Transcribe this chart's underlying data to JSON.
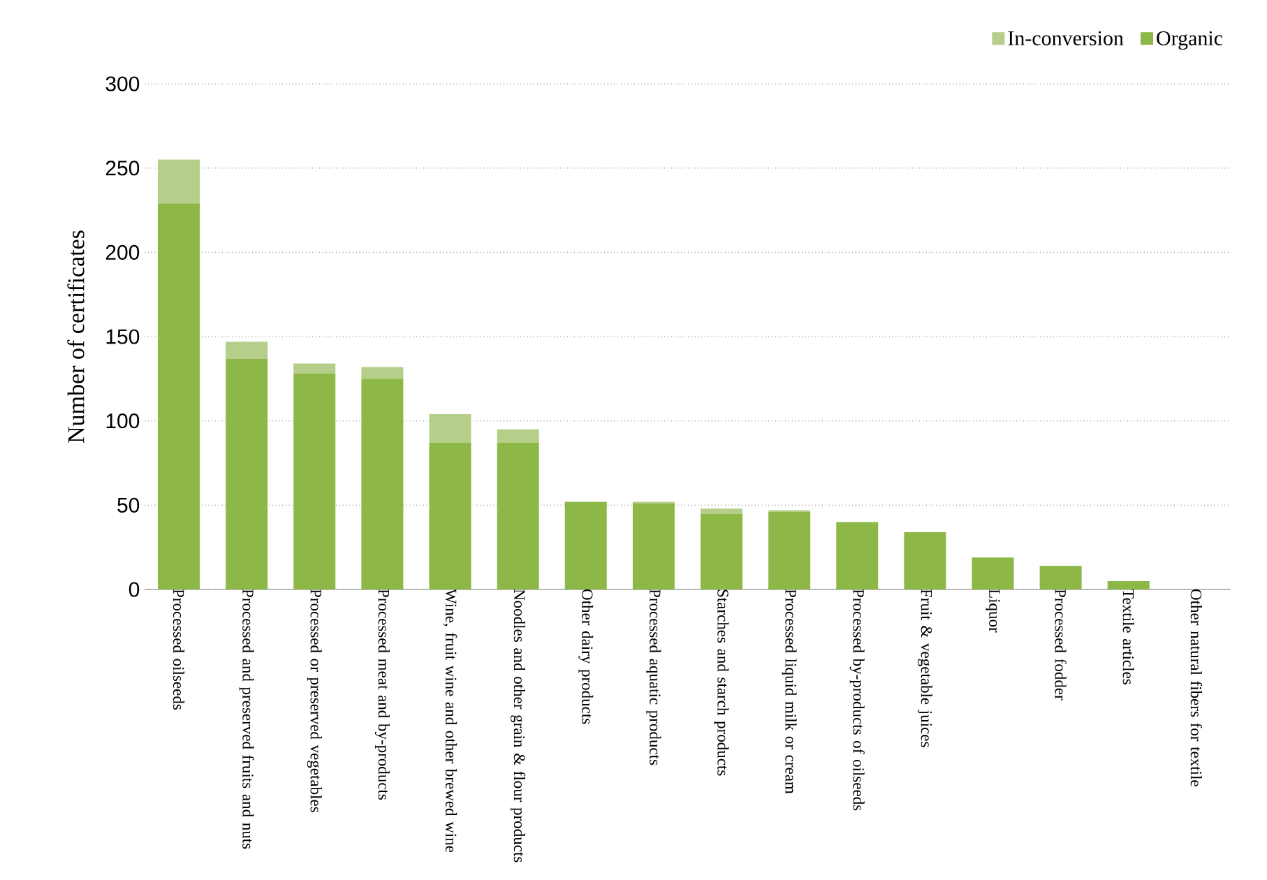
{
  "chart_data": {
    "type": "bar",
    "stacked": true,
    "ylabel": "Number of certificates",
    "categories": [
      "Processed oilseeds",
      "Processed and preserved fruits and nuts",
      "Processed or preserved vegetables",
      "Processed meat and by-products",
      "Wine, fruit wine and other brewed wine",
      "Noodles and other grain & flour products",
      "Other dairy products",
      "Processed aquatic products",
      "Starches and starch products",
      "Processed liquid milk or cream",
      "Processed by-products of oilseeds",
      "Fruit & vegetable juices",
      "Liquor",
      "Processed fodder",
      "Textile articles",
      "Other natural fibers for textile"
    ],
    "series": [
      {
        "name": "Organic",
        "color": "#8db848",
        "values": [
          229,
          137,
          128,
          125,
          87,
          87,
          52,
          51,
          45,
          46,
          40,
          34,
          19,
          14,
          5,
          0
        ]
      },
      {
        "name": "In-conversion",
        "color": "#b5cf8a",
        "values": [
          26,
          10,
          6,
          7,
          17,
          8,
          0,
          1,
          3,
          1,
          0,
          0,
          0,
          0,
          0,
          0
        ]
      }
    ],
    "ylim": [
      0,
      300
    ],
    "yticks": [
      0,
      50,
      100,
      150,
      200,
      250,
      300
    ],
    "grid": "y",
    "legend": "top right"
  }
}
